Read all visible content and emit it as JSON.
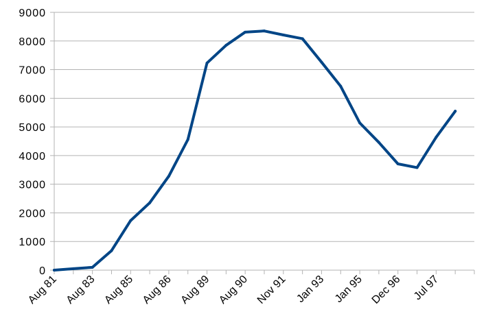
{
  "chart_data": {
    "type": "line",
    "title": "",
    "xlabel": "",
    "ylabel": "",
    "ylim": [
      0,
      9000
    ],
    "y_ticks": [
      0,
      1000,
      2000,
      3000,
      4000,
      5000,
      6000,
      7000,
      8000,
      9000
    ],
    "x_tick_labels": [
      "Aug 81",
      "Aug 83",
      "Aug 85",
      "Aug 86",
      "Aug 89",
      "Aug 90",
      "Nov 91",
      "Jan 93",
      "Jan 95",
      "Dec 96",
      "Jul 97"
    ],
    "grid": "horizontal",
    "legend": "none",
    "series": [
      {
        "color": "#004586",
        "values": [
          0,
          50,
          100,
          680,
          1730,
          2350,
          3280,
          4560,
          7230,
          7850,
          8310,
          8350,
          8210,
          8080,
          7260,
          6420,
          5140,
          4460,
          3710,
          3580,
          4640,
          5550
        ]
      }
    ]
  }
}
